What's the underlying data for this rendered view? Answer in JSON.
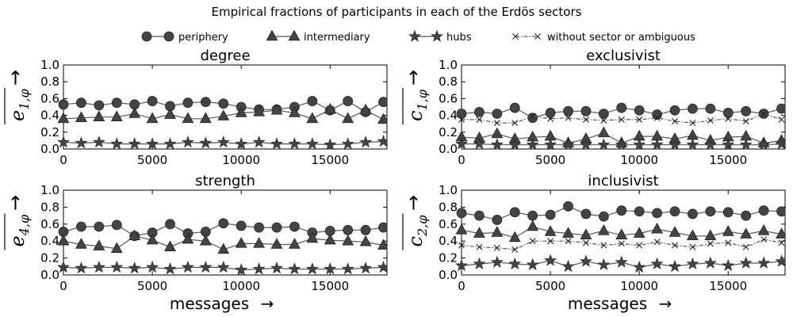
{
  "figure": {
    "title": "Empirical fractions of participants in each of the Erdös sectors",
    "xlabel": "messages",
    "arrow": "→",
    "yarrow": "→"
  },
  "legend": [
    {
      "label": "periphery",
      "marker": "circle",
      "dash": "none"
    },
    {
      "label": "intermediary",
      "marker": "triangle",
      "dash": "none"
    },
    {
      "label": "hubs",
      "marker": "star",
      "dash": "none"
    },
    {
      "label": "without sector or ambiguous",
      "marker": "x",
      "dash": "dotdash"
    }
  ],
  "colors": {
    "series": "#444444",
    "line": "#555555",
    "axis": "#000000"
  },
  "chart_data": [
    {
      "type": "line",
      "title": "degree",
      "ylabel": {
        "base": "e",
        "sub": "1,φ"
      },
      "xlim": [
        0,
        18200
      ],
      "ylim": [
        0,
        1
      ],
      "xticks": [
        0,
        5000,
        10000,
        15000
      ],
      "yticks": [
        0.0,
        0.2,
        0.4,
        0.6,
        0.8,
        1.0
      ],
      "x": [
        0,
        1000,
        2000,
        3000,
        4000,
        5000,
        6000,
        7000,
        8000,
        9000,
        10000,
        11000,
        12000,
        13000,
        14000,
        15000,
        16000,
        17000,
        18000
      ],
      "series": [
        {
          "name": "periphery",
          "marker": "circle",
          "values": [
            0.53,
            0.55,
            0.52,
            0.55,
            0.53,
            0.57,
            0.51,
            0.55,
            0.56,
            0.54,
            0.5,
            0.47,
            0.47,
            0.5,
            0.57,
            0.46,
            0.57,
            0.44,
            0.56
          ]
        },
        {
          "name": "intermediary",
          "marker": "triangle",
          "values": [
            0.36,
            0.37,
            0.38,
            0.38,
            0.42,
            0.36,
            0.41,
            0.36,
            0.36,
            0.39,
            0.43,
            0.44,
            0.46,
            0.43,
            0.36,
            0.47,
            0.36,
            0.46,
            0.35
          ]
        },
        {
          "name": "hubs",
          "marker": "star",
          "values": [
            0.08,
            0.07,
            0.08,
            0.06,
            0.06,
            0.06,
            0.06,
            0.08,
            0.07,
            0.08,
            0.06,
            0.08,
            0.06,
            0.06,
            0.06,
            0.05,
            0.06,
            0.08,
            0.09
          ]
        }
      ]
    },
    {
      "type": "line",
      "title": "exclusivist",
      "ylabel": {
        "base": "c",
        "sub": "1,φ"
      },
      "xlim": [
        0,
        18200
      ],
      "ylim": [
        0,
        1
      ],
      "xticks": [
        0,
        5000,
        10000,
        15000
      ],
      "yticks": [
        0.0,
        0.2,
        0.4,
        0.6,
        0.8,
        1.0
      ],
      "x": [
        0,
        1000,
        2000,
        3000,
        4000,
        5000,
        6000,
        7000,
        8000,
        9000,
        10000,
        11000,
        12000,
        13000,
        14000,
        15000,
        16000,
        17000,
        18000
      ],
      "series": [
        {
          "name": "periphery",
          "marker": "circle",
          "values": [
            0.42,
            0.44,
            0.42,
            0.49,
            0.37,
            0.43,
            0.45,
            0.45,
            0.42,
            0.49,
            0.46,
            0.41,
            0.46,
            0.48,
            0.48,
            0.43,
            0.45,
            0.42,
            0.48
          ]
        },
        {
          "name": "intermediary",
          "marker": "triangle",
          "values": [
            0.14,
            0.13,
            0.18,
            0.12,
            0.14,
            0.15,
            0.07,
            0.12,
            0.19,
            0.07,
            0.15,
            0.15,
            0.12,
            0.16,
            0.1,
            0.14,
            0.15,
            0.07,
            0.1
          ]
        },
        {
          "name": "hubs",
          "marker": "star",
          "values": [
            0.06,
            0.06,
            0.05,
            0.05,
            0.05,
            0.05,
            0.05,
            0.05,
            0.05,
            0.05,
            0.05,
            0.05,
            0.05,
            0.05,
            0.05,
            0.05,
            0.05,
            0.05,
            0.06
          ]
        },
        {
          "name": "without sector or ambiguous",
          "marker": "x",
          "values": [
            0.35,
            0.35,
            0.31,
            0.31,
            0.39,
            0.36,
            0.37,
            0.35,
            0.34,
            0.35,
            0.35,
            0.37,
            0.33,
            0.31,
            0.34,
            0.36,
            0.33,
            0.42,
            0.35
          ]
        }
      ]
    },
    {
      "type": "line",
      "title": "strength",
      "ylabel": {
        "base": "e",
        "sub": "4,φ"
      },
      "xlim": [
        0,
        18200
      ],
      "ylim": [
        0,
        1
      ],
      "xticks": [
        0,
        5000,
        10000,
        15000
      ],
      "yticks": [
        0.0,
        0.2,
        0.4,
        0.6,
        0.8,
        1.0
      ],
      "x": [
        0,
        1000,
        2000,
        3000,
        4000,
        5000,
        6000,
        7000,
        8000,
        9000,
        10000,
        11000,
        12000,
        13000,
        14000,
        15000,
        16000,
        17000,
        18000
      ],
      "series": [
        {
          "name": "periphery",
          "marker": "circle",
          "values": [
            0.51,
            0.57,
            0.57,
            0.59,
            0.46,
            0.5,
            0.6,
            0.49,
            0.51,
            0.61,
            0.58,
            0.56,
            0.56,
            0.57,
            0.5,
            0.52,
            0.53,
            0.53,
            0.56
          ]
        },
        {
          "name": "intermediary",
          "marker": "triangle",
          "values": [
            0.4,
            0.36,
            0.34,
            0.31,
            0.46,
            0.41,
            0.33,
            0.42,
            0.4,
            0.3,
            0.37,
            0.37,
            0.36,
            0.36,
            0.43,
            0.41,
            0.4,
            0.39,
            0.35
          ]
        },
        {
          "name": "hubs",
          "marker": "star",
          "values": [
            0.09,
            0.08,
            0.09,
            0.09,
            0.08,
            0.09,
            0.07,
            0.09,
            0.09,
            0.09,
            0.06,
            0.07,
            0.08,
            0.07,
            0.07,
            0.07,
            0.07,
            0.08,
            0.09
          ]
        }
      ]
    },
    {
      "type": "line",
      "title": "inclusivist",
      "ylabel": {
        "base": "c",
        "sub": "2,φ"
      },
      "xlim": [
        0,
        18200
      ],
      "ylim": [
        0,
        1
      ],
      "xticks": [
        0,
        5000,
        10000,
        15000
      ],
      "yticks": [
        0.0,
        0.2,
        0.4,
        0.6,
        0.8,
        1.0
      ],
      "x": [
        0,
        1000,
        2000,
        3000,
        4000,
        5000,
        6000,
        7000,
        8000,
        9000,
        10000,
        11000,
        12000,
        13000,
        14000,
        15000,
        16000,
        17000,
        18000
      ],
      "series": [
        {
          "name": "periphery",
          "marker": "circle",
          "values": [
            0.73,
            0.7,
            0.65,
            0.74,
            0.7,
            0.71,
            0.81,
            0.72,
            0.69,
            0.76,
            0.75,
            0.73,
            0.75,
            0.72,
            0.75,
            0.74,
            0.7,
            0.76,
            0.75
          ]
        },
        {
          "name": "intermediary",
          "marker": "triangle",
          "values": [
            0.53,
            0.49,
            0.5,
            0.44,
            0.57,
            0.51,
            0.49,
            0.47,
            0.52,
            0.47,
            0.49,
            0.54,
            0.5,
            0.46,
            0.46,
            0.51,
            0.48,
            0.52,
            0.48
          ]
        },
        {
          "name": "hubs",
          "marker": "star",
          "values": [
            0.11,
            0.13,
            0.15,
            0.13,
            0.12,
            0.17,
            0.1,
            0.16,
            0.12,
            0.15,
            0.09,
            0.13,
            0.1,
            0.13,
            0.14,
            0.11,
            0.14,
            0.14,
            0.16
          ]
        },
        {
          "name": "without sector or ambiguous",
          "marker": "x",
          "values": [
            0.35,
            0.33,
            0.32,
            0.3,
            0.4,
            0.4,
            0.4,
            0.38,
            0.35,
            0.37,
            0.35,
            0.39,
            0.35,
            0.33,
            0.37,
            0.38,
            0.33,
            0.42,
            0.38
          ]
        }
      ]
    }
  ]
}
